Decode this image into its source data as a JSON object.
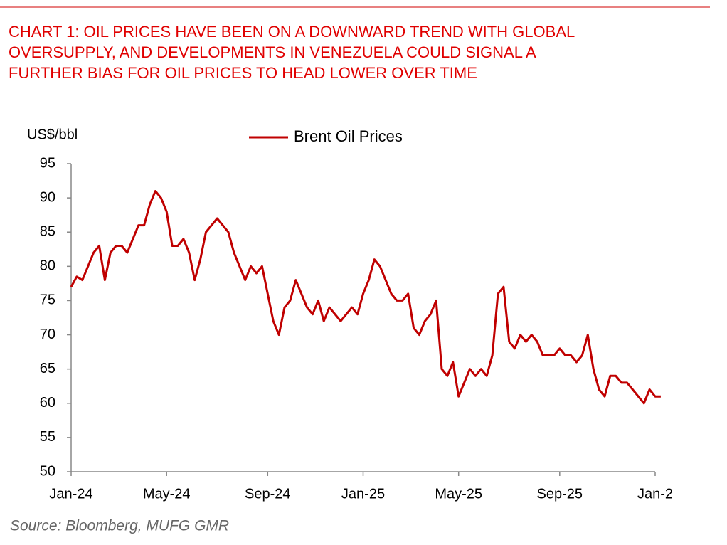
{
  "chart_data": {
    "type": "line",
    "title": [
      "CHART 1: OIL PRICES HAVE BEEN ON A DOWNWARD TREND WITH GLOBAL",
      "OVERSUPPLY, AND DEVELOPMENTS IN VENEZUELA COULD SIGNAL A",
      "FURTHER BIAS FOR OIL PRICES TO HEAD LOWER OVER TIME"
    ],
    "y_label": "US$/bbl",
    "source": "Source: Bloomberg, MUFG GMR",
    "legend": "top",
    "categories": [
      "Jan-24",
      null,
      null,
      null,
      null,
      null,
      null,
      null,
      null,
      null,
      null,
      null,
      null,
      null,
      null,
      null,
      null,
      "May-24",
      null,
      null,
      null,
      null,
      null,
      null,
      null,
      null,
      null,
      null,
      null,
      null,
      null,
      null,
      null,
      null,
      null,
      "Sep-24",
      null,
      null,
      null,
      null,
      null,
      null,
      null,
      null,
      null,
      null,
      null,
      null,
      null,
      null,
      null,
      null,
      "Jan-25",
      null,
      null,
      null,
      null,
      null,
      null,
      null,
      null,
      null,
      null,
      null,
      null,
      null,
      null,
      null,
      null,
      "May-25",
      null,
      null,
      null,
      null,
      null,
      null,
      null,
      null,
      null,
      null,
      null,
      null,
      null,
      null,
      null,
      null,
      null,
      "Sep-25",
      null,
      null,
      null,
      null,
      null,
      null,
      null,
      null,
      null,
      null,
      null,
      null,
      null,
      null,
      null,
      null,
      "Jan-2",
      null
    ],
    "series": [
      {
        "name": "Brent Oil Prices",
        "color": "#c00000",
        "values": [
          77,
          78.5,
          78,
          80,
          82,
          83,
          78,
          82,
          83,
          83,
          82,
          84,
          86,
          86,
          89,
          91,
          90,
          88,
          83,
          83,
          84,
          82,
          78,
          81,
          85,
          86,
          87,
          86,
          85,
          82,
          80,
          78,
          80,
          79,
          80,
          76,
          72,
          70,
          74,
          75,
          78,
          76,
          74,
          73,
          75,
          72,
          74,
          73,
          72,
          73,
          74,
          73,
          76,
          78,
          81,
          80,
          78,
          76,
          75,
          75,
          76,
          71,
          70,
          72,
          73,
          75,
          65,
          64,
          66,
          61,
          63,
          65,
          64,
          65,
          64,
          67,
          76,
          77,
          69,
          68,
          70,
          69,
          70,
          69,
          67,
          67,
          67,
          68,
          67,
          67,
          66,
          67,
          70,
          65,
          62,
          61,
          64,
          64,
          63,
          63,
          62,
          61,
          60,
          62,
          61,
          61
        ]
      }
    ],
    "ylim": [
      50,
      95
    ],
    "yticks": [
      50,
      55,
      60,
      65,
      70,
      75,
      80,
      85,
      90,
      95
    ]
  }
}
